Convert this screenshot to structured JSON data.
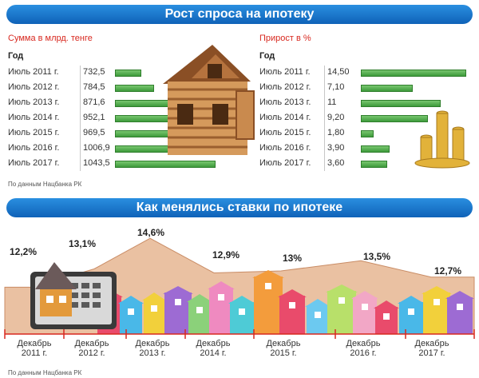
{
  "top_banner": "Рост спроса на ипотеку",
  "bottom_banner": "Как менялись ставки по ипотеке",
  "left_table": {
    "title": "Сумма в млрд. тенге",
    "col_head": "Год",
    "rows": [
      {
        "year": "Июль 2011 г.",
        "value": "732,5",
        "num": 732.5
      },
      {
        "year": "Июль 2012 г.",
        "value": "784,5",
        "num": 784.5
      },
      {
        "year": "Июль 2013 г.",
        "value": "871,6",
        "num": 871.6
      },
      {
        "year": "Июль 2014 г.",
        "value": "952,1",
        "num": 952.1
      },
      {
        "year": "Июль 2015 г.",
        "value": "969,5",
        "num": 969.5
      },
      {
        "year": "Июль 2016 г.",
        "value": "1006,9",
        "num": 1006.9
      },
      {
        "year": "Июль 2017 г.",
        "value": "1043,5",
        "num": 1043.5
      }
    ]
  },
  "right_table": {
    "title": "Прирост в %",
    "col_head": "Год",
    "rows": [
      {
        "year": "Июль 2011 г.",
        "value": "14,50",
        "num": 14.5
      },
      {
        "year": "Июль 2012 г.",
        "value": "7,10",
        "num": 7.1
      },
      {
        "year": "Июль 2013 г.",
        "value": "11",
        "num": 11
      },
      {
        "year": "Июль 2014 г.",
        "value": "9,20",
        "num": 9.2
      },
      {
        "year": "Июль 2015 г.",
        "value": "1,80",
        "num": 1.8
      },
      {
        "year": "Июль 2016 г.",
        "value": "3,90",
        "num": 3.9
      },
      {
        "year": "Июль 2017 г.",
        "value": "3,60",
        "num": 3.6
      }
    ]
  },
  "source_top": "По данным Нацбанка РК",
  "source_bottom": "По данным Нацбанка РК",
  "chart_data": [
    {
      "type": "bar",
      "title": "Сумма в млрд. тенге",
      "categories": [
        "Июль 2011 г.",
        "Июль 2012 г.",
        "Июль 2013 г.",
        "Июль 2014 г.",
        "Июль 2015 г.",
        "Июль 2016 г.",
        "Июль 2017 г."
      ],
      "values": [
        732.5,
        784.5,
        871.6,
        952.1,
        969.5,
        1006.9,
        1043.5
      ]
    },
    {
      "type": "bar",
      "title": "Прирост в %",
      "categories": [
        "Июль 2011 г.",
        "Июль 2012 г.",
        "Июль 2013 г.",
        "Июль 2014 г.",
        "Июль 2015 г.",
        "Июль 2016 г.",
        "Июль 2017 г."
      ],
      "values": [
        14.5,
        7.1,
        11,
        9.2,
        1.8,
        3.9,
        3.6
      ]
    },
    {
      "type": "area",
      "title": "Как менялись ставки по ипотеке",
      "categories": [
        "Декабрь 2011 г.",
        "Декабрь 2012 г.",
        "Декабрь 2013 г.",
        "Декабрь 2014 г.",
        "Декабрь 2015 г.",
        "Декабрь 2016 г.",
        "Декабрь 2017 г."
      ],
      "values": [
        12.2,
        13.1,
        14.6,
        12.9,
        13,
        13.5,
        12.7
      ],
      "value_labels": [
        "12,2%",
        "13,1%",
        "14,6%",
        "12,9%",
        "13%",
        "13,5%",
        "12,7%"
      ],
      "date_lines": [
        [
          "Декабрь",
          "2011 г."
        ],
        [
          "Декабрь",
          "2012 г."
        ],
        [
          "Декабрь",
          "2013 г."
        ],
        [
          "Декабрь",
          "2014 г."
        ],
        [
          "Декабрь",
          "2015 г."
        ],
        [
          "Декабрь",
          "2016 г."
        ],
        [
          "Декабрь",
          "2017 г."
        ]
      ]
    }
  ],
  "colors": {
    "banner": "#1a72c8",
    "title_red": "#d8281f",
    "bar_green": "#4caf50",
    "area_fill": "#e8b999",
    "axis_red": "#d8281f"
  }
}
